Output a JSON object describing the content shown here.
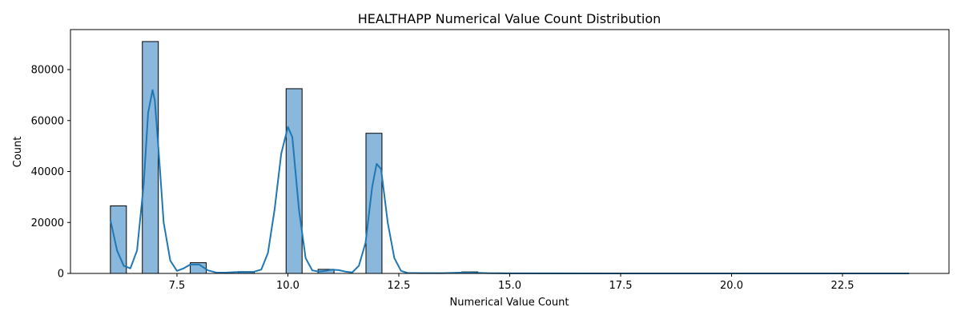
{
  "chart_data": {
    "type": "bar",
    "title": "HEALTHAPP Numerical Value Count Distribution",
    "xlabel": "Numerical Value Count",
    "ylabel": "Count",
    "xlim": [
      5.1,
      24.9
    ],
    "ylim": [
      0,
      95700
    ],
    "xticks": [
      7.5,
      10.0,
      12.5,
      15.0,
      17.5,
      20.0,
      22.5
    ],
    "xtick_labels": [
      "7.5",
      "10.0",
      "12.5",
      "15.0",
      "17.5",
      "20.0",
      "22.5"
    ],
    "yticks": [
      0,
      20000,
      40000,
      60000,
      80000
    ],
    "ytick_labels": [
      "0",
      "20000",
      "40000",
      "60000",
      "80000"
    ],
    "bins": [
      {
        "x0": 6.0,
        "x1": 6.36,
        "count": 26500
      },
      {
        "x0": 6.72,
        "x1": 7.08,
        "count": 91000
      },
      {
        "x0": 7.8,
        "x1": 8.16,
        "count": 4200
      },
      {
        "x0": 8.88,
        "x1": 9.24,
        "count": 700
      },
      {
        "x0": 9.96,
        "x1": 10.32,
        "count": 72500
      },
      {
        "x0": 10.68,
        "x1": 11.04,
        "count": 1600
      },
      {
        "x0": 11.76,
        "x1": 12.12,
        "count": 55000
      },
      {
        "x0": 13.92,
        "x1": 14.28,
        "count": 600
      }
    ],
    "kde": {
      "x": [
        6.0,
        6.15,
        6.3,
        6.45,
        6.6,
        6.75,
        6.85,
        6.95,
        7.0,
        7.1,
        7.2,
        7.35,
        7.5,
        7.65,
        7.8,
        8.0,
        8.2,
        8.4,
        8.6,
        8.8,
        9.0,
        9.2,
        9.4,
        9.55,
        9.7,
        9.85,
        10.0,
        10.1,
        10.25,
        10.4,
        10.55,
        10.7,
        10.85,
        11.0,
        11.15,
        11.3,
        11.45,
        11.6,
        11.75,
        11.9,
        12.0,
        12.1,
        12.25,
        12.4,
        12.55,
        12.7,
        13.0,
        13.5,
        13.9,
        14.1,
        14.5,
        15.0,
        17.5,
        20.0,
        22.5,
        24.0
      ],
      "y": [
        21000,
        9000,
        3000,
        2000,
        9000,
        35000,
        63000,
        72000,
        68000,
        45000,
        20000,
        5000,
        1000,
        2000,
        3500,
        3500,
        1200,
        300,
        300,
        500,
        600,
        500,
        1500,
        8000,
        25000,
        47000,
        57500,
        53500,
        25000,
        6000,
        1200,
        700,
        1000,
        1500,
        1300,
        700,
        400,
        3000,
        12000,
        34000,
        43000,
        41000,
        20000,
        6000,
        1000,
        200,
        100,
        100,
        300,
        300,
        100,
        50,
        0,
        0,
        0,
        0
      ]
    }
  },
  "colors": {
    "bar_fill": "#8ab8dc",
    "bar_edge": "#000000",
    "kde_line": "#1f77b4"
  }
}
